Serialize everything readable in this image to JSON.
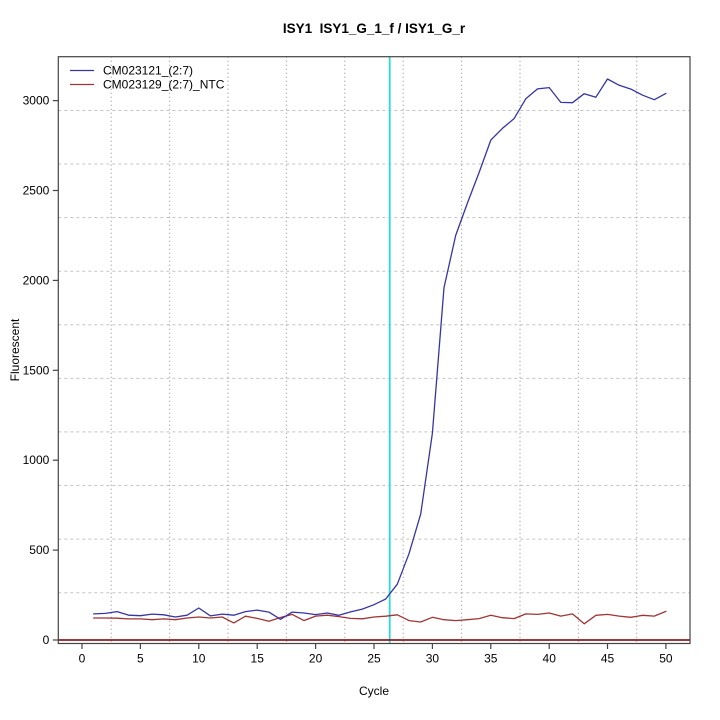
{
  "window": {
    "background_color": "#ffffff"
  },
  "chart_data": {
    "type": "line",
    "title": "ISY1  ISY1_G_1_f / ISY1_G_r",
    "xlabel": "Cycle",
    "ylabel": "Fluorescent",
    "x_ticks": [
      0,
      5,
      10,
      15,
      20,
      25,
      30,
      35,
      40,
      45,
      50
    ],
    "y_ticks": [
      0,
      500,
      1000,
      1500,
      2000,
      2500,
      3000
    ],
    "x_range": [
      -2.03,
      52.06
    ],
    "y_range": [
      -19.6,
      3244
    ],
    "grid": {
      "on": true,
      "vertical_x": [
        2.5,
        7.5,
        12.5,
        17.5,
        22.5,
        27.5,
        32.5,
        37.5,
        42.5,
        47.5
      ],
      "horizontal_y": [
        263,
        561,
        859,
        1157,
        1455,
        1753,
        2051,
        2349,
        2647,
        2945
      ],
      "vertical_color": "#8a8a8a",
      "horizontal_color": "#c4c4c4"
    },
    "x_start": 1,
    "series": [
      {
        "name": "CM023121_(2:7)",
        "color": "#3535a5",
        "values": [
          145,
          148,
          158,
          138,
          135,
          144,
          140,
          128,
          138,
          178,
          134,
          144,
          138,
          158,
          166,
          155,
          115,
          155,
          150,
          141,
          150,
          137,
          156,
          172,
          196,
          228,
          310,
          480,
          700,
          1150,
          1960,
          2250,
          2430,
          2600,
          2780,
          2845,
          2900,
          3010,
          3065,
          3072,
          2990,
          2988,
          3038,
          3019,
          3120,
          3085,
          3064,
          3030,
          3005,
          3040
        ]
      },
      {
        "name": "CM023129_(2:7)_NTC",
        "color": "#a03535",
        "values": [
          122,
          122,
          121,
          117,
          117,
          113,
          117,
          113,
          122,
          128,
          122,
          128,
          95,
          132,
          120,
          104,
          125,
          142,
          108,
          133,
          138,
          130,
          120,
          118,
          128,
          132,
          140,
          108,
          100,
          126,
          113,
          108,
          113,
          119,
          137,
          124,
          119,
          145,
          142,
          150,
          133,
          145,
          90,
          137,
          142,
          133,
          126,
          137,
          133,
          159
        ]
      }
    ],
    "crossing_point_line": {
      "x": 26.35,
      "color": "#2bd9d9"
    },
    "zero_line": {
      "y": 0,
      "color": "#8b1d1d"
    },
    "legend_position": "top-left",
    "axis_color": "#444444"
  }
}
